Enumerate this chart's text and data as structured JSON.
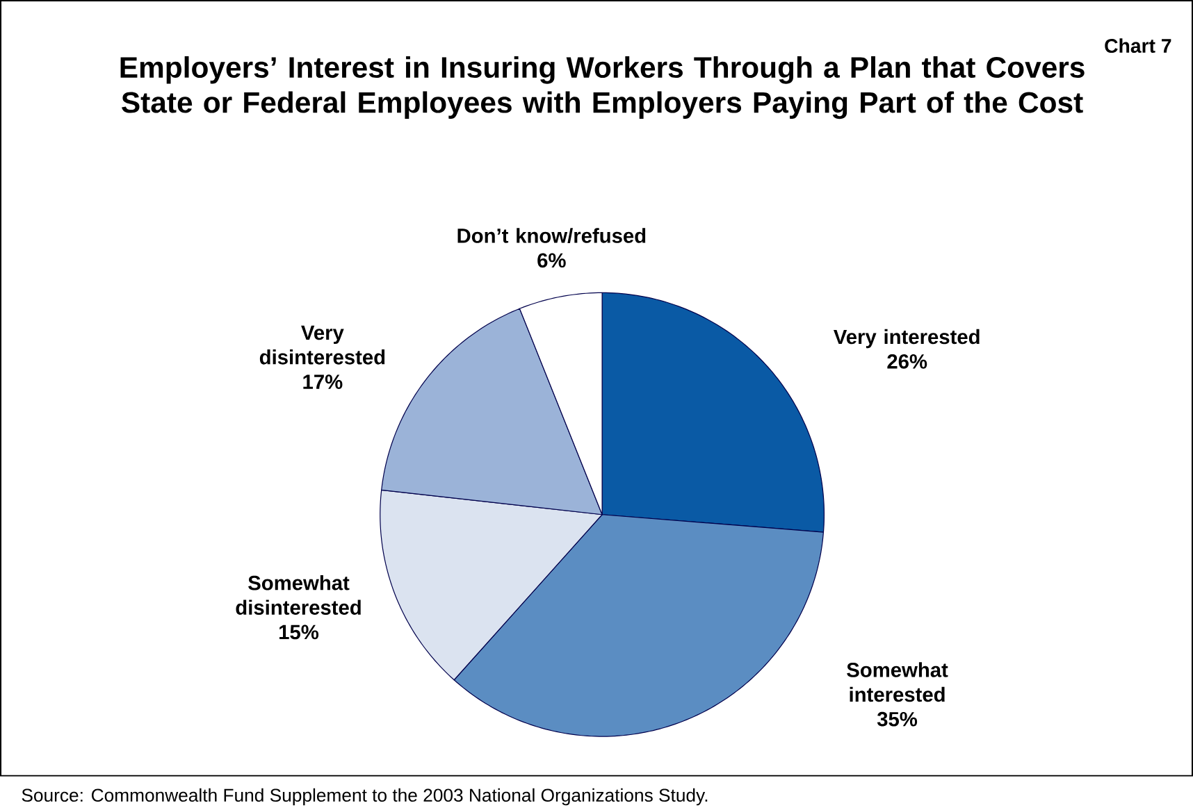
{
  "chart_data": {
    "type": "pie",
    "title": "Employers’ Interest in Insuring Workers Through a Plan that Covers State or Federal Employees with Employers Paying Part of the Cost",
    "categories": [
      "Very interested",
      "Somewhat interested",
      "Somewhat disinterested",
      "Very disinterested",
      "Don’t know/refused"
    ],
    "values": [
      26,
      35,
      15,
      17,
      6
    ],
    "value_labels": [
      "26%",
      "35%",
      "15%",
      "17%",
      "6%"
    ],
    "colors": [
      "#0a5aa5",
      "#5b8dc2",
      "#dbe3f0",
      "#9bb3d8",
      "#ffffff"
    ],
    "annotations": [
      "Chart 7",
      "Source: Commonwealth Fund Supplement to the 2003 National Organizations Study."
    ]
  }
}
